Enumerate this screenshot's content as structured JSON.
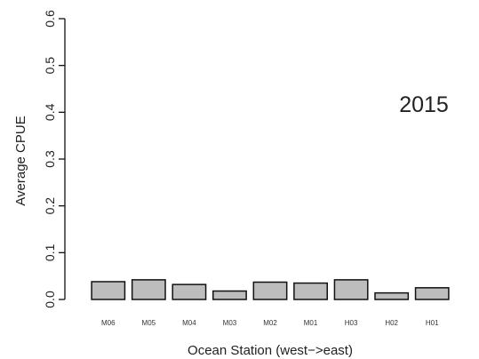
{
  "chart_data": {
    "type": "bar",
    "annotation": "2015",
    "xlabel": "Ocean Station (west−>east)",
    "ylabel": "Average CPUE",
    "categories": [
      "M06",
      "M05",
      "M04",
      "M03",
      "M02",
      "M01",
      "H03",
      "H02",
      "H01"
    ],
    "values": [
      0.038,
      0.042,
      0.032,
      0.018,
      0.037,
      0.035,
      0.042,
      0.014,
      0.025
    ],
    "ylim": [
      0,
      0.6
    ],
    "yticks": [
      "0.0",
      "0.1",
      "0.2",
      "0.3",
      "0.4",
      "0.5",
      "0.6"
    ],
    "grid": false,
    "bar_color": "#bdbdbd",
    "bar_edge_color": "#111111"
  }
}
